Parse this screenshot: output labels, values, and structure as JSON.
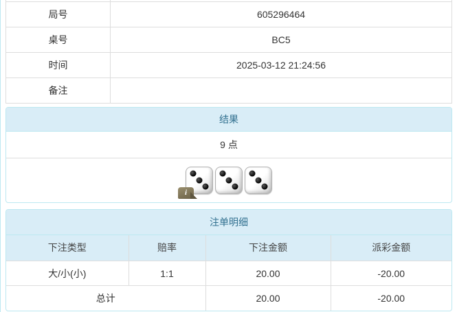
{
  "info_table": {
    "rows": [
      {
        "label": "局号",
        "value": "605296464"
      },
      {
        "label": "桌号",
        "value": "BC5"
      },
      {
        "label": "时间",
        "value": "2025-03-12 21:24:56"
      },
      {
        "label": "备注",
        "value": ""
      }
    ]
  },
  "result_panel": {
    "title": "结果",
    "points": "9 点",
    "dice": [
      3,
      3,
      3
    ],
    "info_icon": "i"
  },
  "bets_panel": {
    "title": "注单明细",
    "columns": [
      "下注类型",
      "赔率",
      "下注金额",
      "派彩金额"
    ],
    "rows": [
      {
        "type": "大/小(小)",
        "odds": "1:1",
        "bet": "20.00",
        "payout": "-20.00"
      }
    ],
    "total": {
      "label": "总计",
      "bet": "20.00",
      "payout": "-20.00"
    }
  },
  "colors": {
    "panel_border": "#bce8f1",
    "panel_header_bg": "#d9edf7",
    "panel_header_text": "#31708f",
    "table_border": "#dddddd",
    "text": "#333333",
    "negative": "#ff0000",
    "col_header_text": "#444444"
  }
}
